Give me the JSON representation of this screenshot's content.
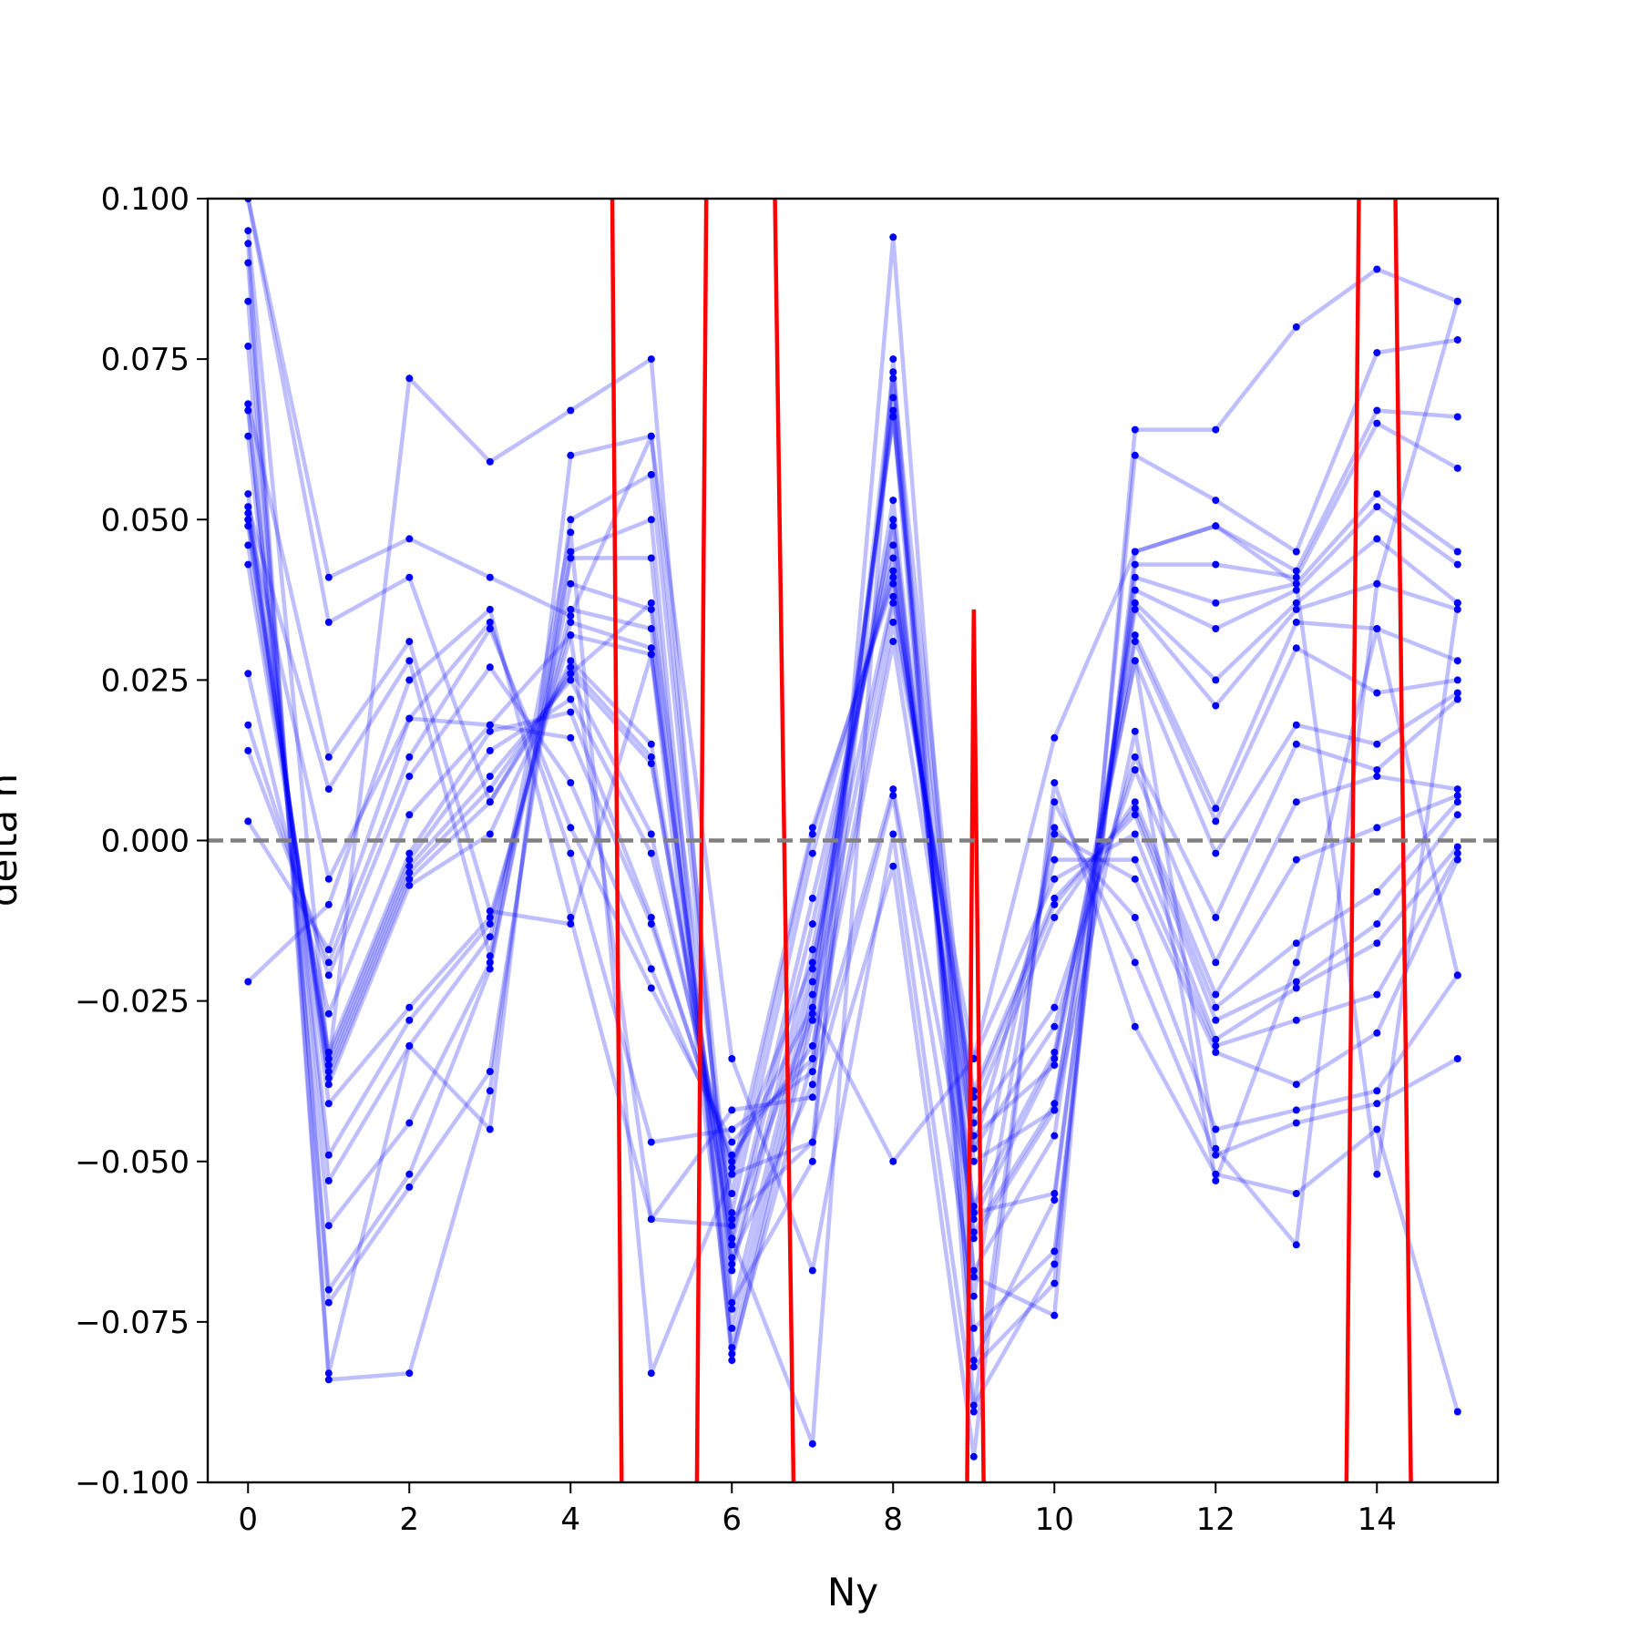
{
  "chart_data": {
    "type": "line",
    "title": "",
    "xlabel": "Ny",
    "ylabel": "delta n",
    "xlim": [
      -0.5,
      15.5
    ],
    "ylim": [
      -0.1,
      0.1
    ],
    "xticks": [
      0,
      2,
      4,
      6,
      8,
      10,
      12,
      14
    ],
    "yticks": [
      -0.1,
      -0.075,
      -0.05,
      -0.025,
      0.0,
      0.025,
      0.05,
      0.075,
      0.1
    ],
    "xtick_labels": [
      "0",
      "2",
      "4",
      "6",
      "8",
      "10",
      "12",
      "14"
    ],
    "ytick_labels": [
      "−0.100",
      "−0.075",
      "−0.050",
      "−0.025",
      "0.000",
      "0.025",
      "0.050",
      "0.075",
      "0.100"
    ],
    "grid": false,
    "legend": "none",
    "reference_line": {
      "y": 0.0,
      "style": "dashed",
      "color": "#808080"
    },
    "colors": {
      "series": "#0000ff",
      "highlight": "#ff0000"
    },
    "x": [
      0,
      1,
      2,
      3,
      4,
      5,
      6,
      7,
      8,
      9,
      10,
      11,
      12,
      13,
      14,
      15
    ],
    "series": [
      {
        "values": [
          0.095,
          -0.035,
          0.072,
          0.059,
          0.067,
          0.075,
          -0.072,
          -0.05,
          0.094,
          -0.068,
          -0.074,
          0.064,
          0.064,
          0.08,
          0.089,
          0.084
        ]
      },
      {
        "values": [
          0.093,
          -0.083,
          -0.032,
          -0.045,
          0.06,
          0.063,
          -0.062,
          -0.094,
          0.075,
          -0.082,
          -0.069,
          0.06,
          0.053,
          0.045,
          0.076,
          0.078
        ]
      },
      {
        "values": [
          0.09,
          -0.084,
          -0.083,
          -0.039,
          0.05,
          0.057,
          -0.065,
          -0.038,
          0.073,
          -0.088,
          -0.066,
          0.045,
          0.049,
          0.042,
          0.067,
          0.066
        ]
      },
      {
        "values": [
          0.084,
          -0.072,
          -0.054,
          -0.036,
          0.045,
          0.05,
          -0.08,
          -0.034,
          0.069,
          -0.076,
          -0.064,
          0.043,
          0.043,
          0.041,
          0.065,
          0.058
        ]
      },
      {
        "values": [
          0.077,
          -0.07,
          -0.052,
          -0.02,
          0.044,
          0.044,
          -0.081,
          -0.028,
          0.067,
          -0.081,
          -0.056,
          0.041,
          0.037,
          0.04,
          0.054,
          0.045
        ]
      },
      {
        "values": [
          0.068,
          -0.06,
          -0.044,
          -0.019,
          0.04,
          0.036,
          -0.076,
          -0.024,
          0.066,
          -0.058,
          -0.055,
          0.039,
          0.033,
          0.039,
          0.052,
          0.043
        ]
      },
      {
        "values": [
          0.067,
          -0.053,
          -0.032,
          -0.015,
          0.036,
          0.033,
          -0.073,
          -0.022,
          0.053,
          -0.067,
          -0.046,
          0.037,
          0.025,
          0.037,
          0.047,
          0.037
        ]
      },
      {
        "values": [
          0.063,
          -0.049,
          -0.028,
          -0.013,
          0.034,
          0.03,
          -0.067,
          -0.02,
          0.05,
          -0.062,
          -0.042,
          0.036,
          0.021,
          0.036,
          0.04,
          0.036
        ]
      },
      {
        "values": [
          0.054,
          -0.041,
          -0.026,
          -0.012,
          0.032,
          0.029,
          -0.066,
          -0.017,
          0.049,
          -0.061,
          -0.041,
          0.032,
          0.005,
          0.034,
          0.033,
          0.028
        ]
      },
      {
        "values": [
          0.052,
          -0.038,
          -0.007,
          0.001,
          0.028,
          0.015,
          -0.063,
          -0.013,
          0.046,
          -0.059,
          -0.034,
          0.031,
          0.003,
          0.03,
          0.023,
          0.025
        ]
      },
      {
        "values": [
          0.051,
          -0.037,
          -0.006,
          0.006,
          0.027,
          0.013,
          -0.062,
          -0.009,
          0.044,
          -0.057,
          -0.033,
          0.028,
          -0.002,
          0.018,
          0.015,
          0.023
        ]
      },
      {
        "values": [
          0.05,
          -0.036,
          -0.005,
          0.008,
          0.026,
          0.012,
          -0.058,
          -0.002,
          0.042,
          -0.048,
          -0.029,
          0.013,
          -0.012,
          0.015,
          0.011,
          0.022
        ]
      },
      {
        "values": [
          0.049,
          -0.035,
          -0.004,
          0.01,
          0.025,
          0.001,
          -0.055,
          0.001,
          0.041,
          -0.044,
          -0.026,
          0.011,
          -0.019,
          0.006,
          0.01,
          0.008
        ]
      },
      {
        "values": [
          0.046,
          -0.034,
          -0.003,
          0.014,
          0.022,
          -0.002,
          -0.052,
          0.002,
          0.04,
          -0.042,
          -0.012,
          0.006,
          -0.024,
          -0.003,
          0.002,
          0.007
        ]
      },
      {
        "values": [
          0.043,
          -0.033,
          -0.002,
          0.017,
          0.02,
          -0.012,
          -0.051,
          -0.019,
          0.038,
          -0.04,
          -0.01,
          0.005,
          -0.026,
          -0.016,
          -0.008,
          0.006
        ]
      },
      {
        "values": [
          0.026,
          -0.027,
          0.004,
          0.018,
          0.016,
          -0.013,
          -0.05,
          -0.026,
          0.037,
          -0.039,
          -0.009,
          0.004,
          -0.028,
          -0.022,
          -0.013,
          0.004
        ]
      },
      {
        "values": [
          0.018,
          -0.021,
          0.01,
          0.027,
          0.009,
          -0.02,
          -0.049,
          -0.032,
          0.034,
          -0.034,
          -0.006,
          0.001,
          -0.031,
          -0.023,
          -0.016,
          -0.001
        ]
      },
      {
        "values": [
          0.014,
          -0.019,
          0.013,
          0.033,
          0.002,
          -0.023,
          -0.047,
          -0.034,
          0.031,
          -0.048,
          -0.003,
          -0.003,
          -0.032,
          -0.028,
          -0.024,
          -0.002
        ]
      },
      {
        "values": [
          0.003,
          -0.017,
          0.019,
          0.034,
          -0.002,
          -0.047,
          -0.045,
          -0.036,
          0.008,
          -0.058,
          0.001,
          -0.006,
          -0.033,
          -0.038,
          -0.03,
          -0.003
        ]
      },
      {
        "values": [
          -0.022,
          -0.01,
          0.025,
          0.036,
          -0.012,
          -0.059,
          -0.042,
          -0.04,
          0.007,
          -0.071,
          0.002,
          -0.012,
          -0.045,
          -0.042,
          -0.039,
          -0.021
        ]
      },
      {
        "values": [
          0.1,
          0.041,
          0.047,
          0.041,
          0.035,
          0.063,
          -0.034,
          -0.067,
          0.001,
          -0.089,
          0.006,
          -0.019,
          -0.049,
          -0.044,
          -0.041,
          -0.034
        ]
      },
      {
        "values": [
          0.1,
          0.034,
          0.041,
          0.006,
          0.026,
          0.037,
          -0.059,
          -0.047,
          -0.004,
          -0.096,
          0.009,
          -0.029,
          -0.052,
          -0.055,
          -0.045,
          -0.089
        ]
      },
      {
        "values": [
          0.068,
          0.013,
          0.031,
          -0.011,
          -0.013,
          0.029,
          -0.079,
          -0.026,
          -0.05,
          -0.034,
          0.016,
          0.045,
          0.049,
          0.04,
          -0.052,
          0.037
        ]
      },
      {
        "values": [
          0.052,
          0.008,
          0.028,
          -0.018,
          0.048,
          -0.083,
          -0.052,
          -0.047,
          0.072,
          -0.046,
          -0.035,
          0.028,
          -0.048,
          -0.063,
          0.04,
          0.084
        ]
      },
      {
        "values": [
          0.05,
          -0.006,
          0.019,
          0.018,
          0.032,
          -0.059,
          -0.06,
          -0.027,
          0.066,
          -0.05,
          -0.042,
          0.017,
          -0.053,
          -0.019,
          0.033,
          -0.021
        ]
      }
    ],
    "highlight": {
      "name": "",
      "x": [
        4.5,
        4.65,
        5.55,
        5.7,
        6.5,
        6.8,
        8.9,
        9.0,
        9.15,
        13.6,
        13.8,
        14.2,
        14.45
      ],
      "values": [
        0.13,
        -0.13,
        -0.13,
        0.13,
        0.13,
        -0.13,
        -0.13,
        0.036,
        -0.13,
        -0.13,
        0.13,
        0.13,
        -0.13
      ]
    }
  }
}
